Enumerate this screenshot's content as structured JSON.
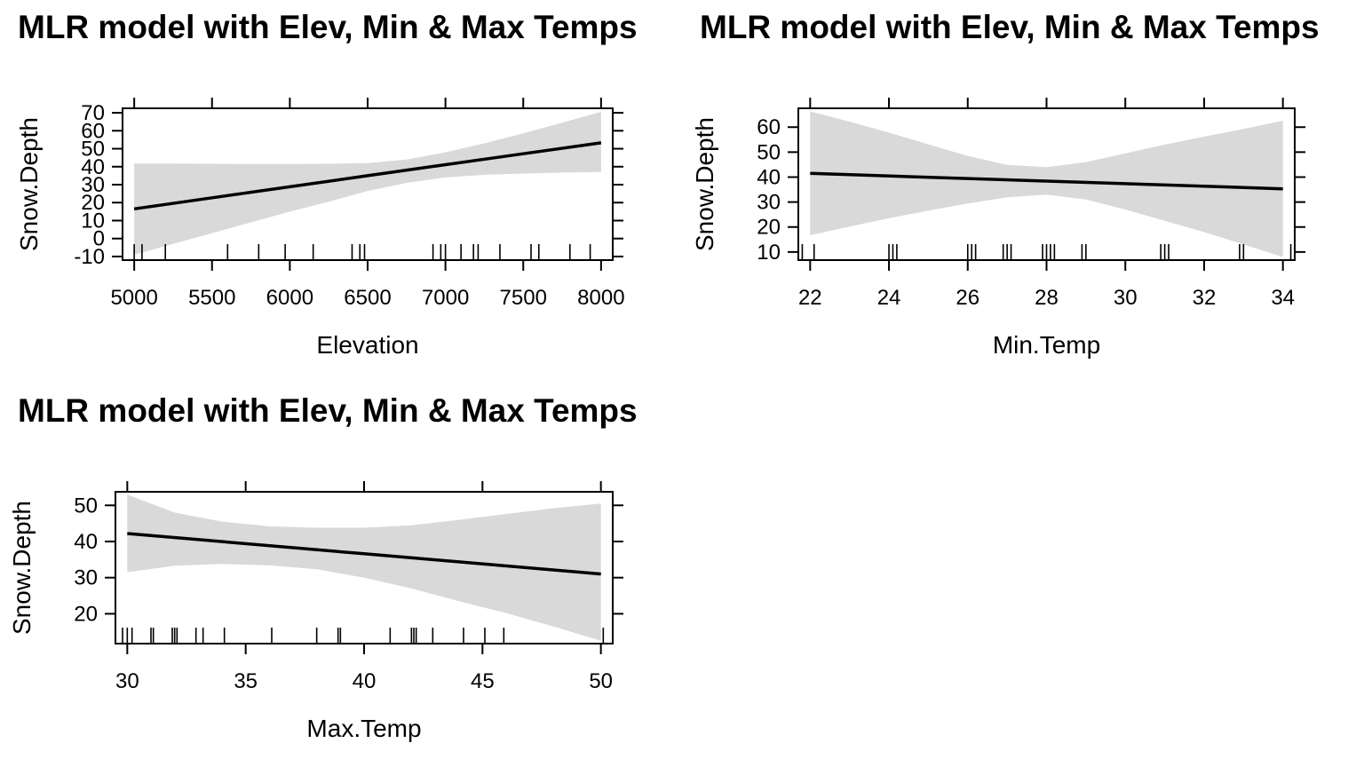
{
  "figure": {
    "background": "#ffffff"
  },
  "style": {
    "band_color": "#d9d9d9",
    "line_color": "#000000",
    "axis_color": "#000000"
  },
  "chart_data": [
    {
      "type": "line",
      "panel": "elevation",
      "title": "MLR model with Elev, Min & Max Temps",
      "xlabel": "Elevation",
      "ylabel": "Snow.Depth",
      "xlim": [
        5000,
        8000
      ],
      "ylim": [
        -10,
        70
      ],
      "x_ticks": [
        5000,
        5500,
        6000,
        6500,
        7000,
        7500,
        8000
      ],
      "y_ticks": [
        -10,
        0,
        10,
        20,
        30,
        40,
        50,
        60,
        70
      ],
      "series": [
        {
          "x": [
            5000,
            5500,
            6000,
            6500,
            7000,
            7500,
            8000
          ],
          "y": [
            16.5,
            22.7,
            28.8,
            35.0,
            41.1,
            47.2,
            53.3
          ]
        }
      ],
      "confidence_band": {
        "x": [
          5000,
          5250,
          5500,
          5750,
          6000,
          6250,
          6500,
          6750,
          7000,
          7250,
          7500,
          7750,
          8000
        ],
        "lower": [
          -9.0,
          -3.0,
          3.0,
          9.0,
          15.0,
          20.5,
          26.5,
          31.0,
          34.0,
          35.5,
          36.2,
          36.7,
          37.0
        ],
        "upper": [
          41.8,
          41.7,
          41.6,
          41.5,
          41.5,
          41.6,
          42.0,
          44.0,
          48.0,
          53.0,
          58.5,
          64.5,
          70.5
        ]
      },
      "rug": [
        5000,
        5050,
        5200,
        5600,
        5800,
        5970,
        6150,
        6400,
        6450,
        6480,
        6920,
        6970,
        7000,
        7100,
        7180,
        7210,
        7350,
        7550,
        7600,
        7800,
        7930
      ]
    },
    {
      "type": "line",
      "panel": "min-temp",
      "title": "MLR model with Elev, Min & Max Temps",
      "xlabel": "Min.Temp",
      "ylabel": "Snow.Depth",
      "xlim": [
        22,
        34
      ],
      "ylim": [
        10,
        60
      ],
      "x_ticks": [
        22,
        24,
        26,
        28,
        30,
        32,
        34
      ],
      "y_ticks": [
        10,
        20,
        30,
        40,
        50,
        60
      ],
      "series": [
        {
          "x": [
            22,
            28,
            34
          ],
          "y": [
            41.5,
            38.4,
            35.3
          ]
        }
      ],
      "confidence_band": {
        "x": [
          22,
          23,
          24,
          25,
          26,
          27,
          28,
          29,
          30,
          31,
          32,
          33,
          34
        ],
        "lower": [
          16.7,
          20.2,
          23.5,
          26.6,
          29.4,
          31.9,
          33.0,
          31.0,
          27.0,
          22.5,
          18.0,
          13.0,
          8.0
        ],
        "upper": [
          66.3,
          62.2,
          57.8,
          53.1,
          48.5,
          44.9,
          44.0,
          46.0,
          49.5,
          53.0,
          56.2,
          59.3,
          62.6
        ]
      },
      "rug": [
        21.8,
        22.1,
        24.0,
        24.1,
        24.2,
        26.0,
        26.1,
        26.2,
        26.9,
        27.0,
        27.1,
        27.9,
        28.0,
        28.1,
        28.2,
        28.9,
        29.0,
        30.9,
        31.0,
        31.1,
        32.9,
        33.0,
        34.2
      ]
    },
    {
      "type": "line",
      "panel": "max-temp",
      "title": "MLR model with Elev, Min & Max Temps",
      "xlabel": "Max.Temp",
      "ylabel": "Snow.Depth",
      "xlim": [
        30,
        50
      ],
      "ylim": [
        20,
        50
      ],
      "x_ticks": [
        30,
        35,
        40,
        45,
        50
      ],
      "y_ticks": [
        20,
        30,
        40,
        50
      ],
      "series": [
        {
          "x": [
            30,
            40,
            50
          ],
          "y": [
            42.2,
            36.6,
            31.0
          ]
        }
      ],
      "confidence_band": {
        "x": [
          30,
          32,
          34,
          36,
          38,
          40,
          42,
          44,
          46,
          48,
          50
        ],
        "lower": [
          31.5,
          33.3,
          33.8,
          33.4,
          32.3,
          30.0,
          27.0,
          23.5,
          20.2,
          16.5,
          12.5
        ],
        "upper": [
          53.0,
          48.0,
          45.5,
          44.2,
          43.8,
          43.8,
          44.5,
          46.0,
          47.6,
          49.2,
          50.5
        ]
      },
      "rug": [
        29.8,
        30.0,
        30.2,
        31.0,
        31.1,
        31.9,
        32.0,
        32.1,
        32.9,
        33.2,
        34.1,
        36.1,
        38.0,
        38.9,
        39.0,
        41.1,
        42.0,
        42.1,
        42.2,
        42.9,
        44.2,
        45.1,
        45.9,
        50.1
      ]
    }
  ]
}
